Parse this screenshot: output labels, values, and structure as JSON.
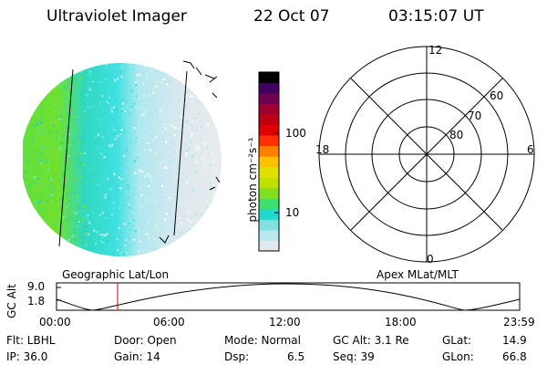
{
  "header": {
    "instrument": "Ultraviolet Imager",
    "date": "22 Oct 07",
    "time": "03:15:07 UT"
  },
  "colorbar": {
    "unit_label": "photon cm⁻²s⁻¹",
    "ticks": [
      "100",
      "10"
    ],
    "scale": "log",
    "colors": [
      "#e0e8f0",
      "#b8e8f0",
      "#80e0e0",
      "#20d8d0",
      "#40e070",
      "#80e020",
      "#c0e000",
      "#e0e000",
      "#ffc000",
      "#ff8000",
      "#ff3000",
      "#e00000",
      "#c00010",
      "#a00030",
      "#700050",
      "#400060",
      "#000000"
    ]
  },
  "polar_grid": {
    "mlt_labels": {
      "top": "12",
      "left": "18",
      "right": "6",
      "bottom": "0"
    },
    "lat_labels": [
      "60",
      "70",
      "80"
    ]
  },
  "altitude_plot": {
    "left_title": "Geographic Lat/Lon",
    "right_title": "Apex MLat/MLT",
    "ylabel": "GC Alt",
    "y_ticks": [
      "9.0",
      "1.8"
    ],
    "x_ticks": [
      "00:00",
      "06:00",
      "12:00",
      "18:00",
      "23:59"
    ],
    "current_marker_color": "#d00000"
  },
  "footer": {
    "row1": {
      "flt": "Flt: LBHL",
      "door": "Door: Open",
      "mode": "Mode: Normal",
      "gcalt": "GC Alt: 3.1 Re",
      "glat_label": "GLat:",
      "glat_value": "14.9"
    },
    "row2": {
      "ip": "IP: 36.0",
      "gain": "Gain: 14",
      "dsp_label": "Dsp:",
      "dsp_value": "6.5",
      "seq": "Seq: 39",
      "glon_label": "GLon:",
      "glon_value": "66.8"
    }
  }
}
